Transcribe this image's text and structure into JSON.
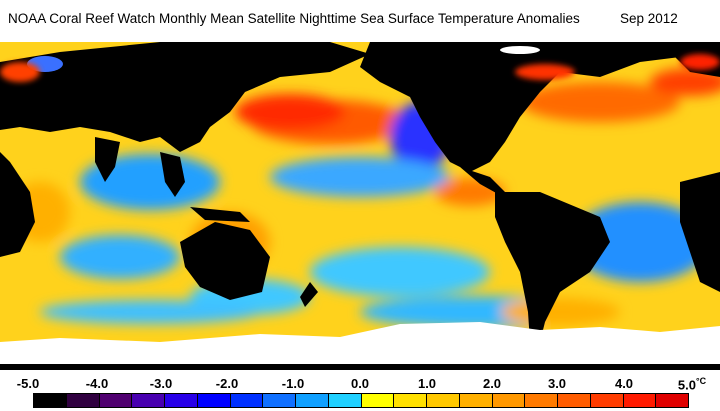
{
  "title": "NOAA Coral Reef Watch Monthly Mean Satellite Nighttime Sea Surface Temperature Anomalies",
  "date": "Sep 2012",
  "legend": {
    "ticks": [
      "-5.0",
      "-4.0",
      "-3.0",
      "-2.0",
      "-1.0",
      "0.0",
      "1.0",
      "2.0",
      "3.0",
      "4.0",
      "5.0"
    ],
    "unit": "°C",
    "colors": [
      "#000000",
      "#300040",
      "#500070",
      "#4800b0",
      "#2800e8",
      "#0000ff",
      "#0030ff",
      "#1070ff",
      "#10a0ff",
      "#20d0ff",
      "#ffff00",
      "#ffe000",
      "#ffc800",
      "#ffb000",
      "#ff9800",
      "#ff7a00",
      "#ff5c00",
      "#ff3c00",
      "#ff1a00",
      "#e00000"
    ]
  },
  "colors": {
    "land": "#000000",
    "ice": "#ffffff",
    "ocean_base": "#ffd21c"
  }
}
